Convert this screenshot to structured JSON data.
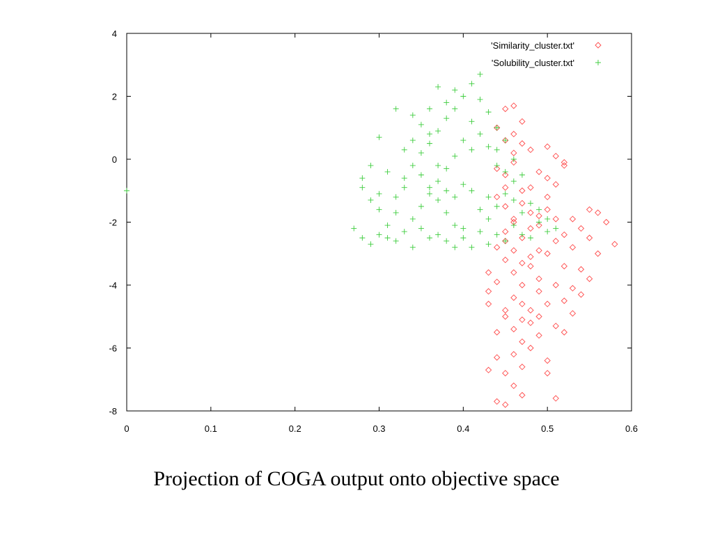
{
  "caption": "Projection of COGA output onto objective space",
  "chart_data": {
    "type": "scatter",
    "title": "",
    "xlabel": "",
    "ylabel": "",
    "xlim": [
      0,
      0.6
    ],
    "ylim": [
      -8,
      4
    ],
    "xticks": [
      0,
      0.1,
      0.2,
      0.3,
      0.4,
      0.5,
      0.6
    ],
    "xtick_labels": [
      "0",
      "0.1",
      "0.2",
      "0.3",
      "0.4",
      "0.5",
      "0.6"
    ],
    "yticks": [
      4,
      2,
      0,
      -2,
      -4,
      -6,
      -8
    ],
    "ytick_labels": [
      "4",
      "2",
      "0",
      "-2",
      "-4",
      "-6",
      "-8"
    ],
    "grid": false,
    "legend_position": "top-right",
    "series": [
      {
        "name": "'Similarity_cluster.txt'",
        "marker": "diamond",
        "color": "#ff4a4a",
        "points": [
          [
            0.44,
            -0.3
          ],
          [
            0.45,
            -0.5
          ],
          [
            0.46,
            0.2
          ],
          [
            0.47,
            -1.0
          ],
          [
            0.45,
            -1.5
          ],
          [
            0.46,
            -2.0
          ],
          [
            0.47,
            -2.5
          ],
          [
            0.48,
            -2.2
          ],
          [
            0.49,
            -1.8
          ],
          [
            0.5,
            -1.2
          ],
          [
            0.51,
            -0.8
          ],
          [
            0.52,
            -0.2
          ],
          [
            0.5,
            0.4
          ],
          [
            0.46,
            0.8
          ],
          [
            0.47,
            1.2
          ],
          [
            0.45,
            1.6
          ],
          [
            0.46,
            1.7
          ],
          [
            0.44,
            1.0
          ],
          [
            0.45,
            0.6
          ],
          [
            0.48,
            0.3
          ],
          [
            0.44,
            -2.8
          ],
          [
            0.45,
            -3.2
          ],
          [
            0.46,
            -3.6
          ],
          [
            0.47,
            -4.0
          ],
          [
            0.48,
            -3.4
          ],
          [
            0.49,
            -3.8
          ],
          [
            0.46,
            -4.4
          ],
          [
            0.47,
            -4.6
          ],
          [
            0.48,
            -4.8
          ],
          [
            0.49,
            -4.2
          ],
          [
            0.45,
            -5.0
          ],
          [
            0.46,
            -5.4
          ],
          [
            0.47,
            -5.8
          ],
          [
            0.48,
            -5.2
          ],
          [
            0.49,
            -5.6
          ],
          [
            0.46,
            -6.2
          ],
          [
            0.47,
            -6.6
          ],
          [
            0.48,
            -6.0
          ],
          [
            0.5,
            -6.4
          ],
          [
            0.45,
            -6.8
          ],
          [
            0.46,
            -7.2
          ],
          [
            0.47,
            -7.5
          ],
          [
            0.45,
            -7.8
          ],
          [
            0.44,
            -7.7
          ],
          [
            0.51,
            -7.6
          ],
          [
            0.5,
            -6.8
          ],
          [
            0.52,
            -5.5
          ],
          [
            0.53,
            -4.9
          ],
          [
            0.54,
            -4.3
          ],
          [
            0.55,
            -3.8
          ],
          [
            0.56,
            -3.0
          ],
          [
            0.54,
            -2.2
          ],
          [
            0.55,
            -1.6
          ],
          [
            0.56,
            -1.7
          ],
          [
            0.57,
            -2.0
          ],
          [
            0.58,
            -2.7
          ],
          [
            0.53,
            -2.8
          ],
          [
            0.52,
            -3.4
          ],
          [
            0.51,
            -4.0
          ],
          [
            0.5,
            -4.6
          ],
          [
            0.43,
            -4.2
          ],
          [
            0.43,
            -3.6
          ],
          [
            0.44,
            -5.5
          ],
          [
            0.44,
            -6.3
          ],
          [
            0.43,
            -6.7
          ],
          [
            0.5,
            -3.0
          ],
          [
            0.51,
            -2.6
          ],
          [
            0.52,
            -2.4
          ],
          [
            0.49,
            -2.9
          ],
          [
            0.48,
            -3.1
          ],
          [
            0.47,
            -3.3
          ],
          [
            0.46,
            -2.9
          ],
          [
            0.45,
            -2.6
          ],
          [
            0.44,
            -3.9
          ],
          [
            0.43,
            -4.6
          ],
          [
            0.45,
            -4.8
          ],
          [
            0.47,
            -5.1
          ],
          [
            0.49,
            -5.0
          ],
          [
            0.51,
            -5.3
          ],
          [
            0.52,
            -4.5
          ],
          [
            0.53,
            -4.1
          ],
          [
            0.54,
            -3.5
          ],
          [
            0.55,
            -2.5
          ],
          [
            0.53,
            -1.9
          ],
          [
            0.52,
            -0.1
          ],
          [
            0.51,
            0.1
          ],
          [
            0.5,
            -0.6
          ],
          [
            0.49,
            -0.4
          ],
          [
            0.48,
            -0.9
          ],
          [
            0.47,
            -1.4
          ],
          [
            0.46,
            -1.9
          ],
          [
            0.45,
            -2.3
          ],
          [
            0.44,
            -1.2
          ],
          [
            0.45,
            -0.9
          ],
          [
            0.46,
            -0.1
          ],
          [
            0.47,
            0.5
          ],
          [
            0.48,
            -1.7
          ],
          [
            0.49,
            -2.1
          ],
          [
            0.5,
            -1.6
          ],
          [
            0.51,
            -1.9
          ]
        ]
      },
      {
        "name": "'Solubility_cluster.txt'",
        "marker": "plus",
        "color": "#3ccc3c",
        "points": [
          [
            0.0,
            -1.0
          ],
          [
            0.27,
            -2.2
          ],
          [
            0.28,
            -2.5
          ],
          [
            0.29,
            -2.7
          ],
          [
            0.3,
            -2.4
          ],
          [
            0.31,
            -2.1
          ],
          [
            0.3,
            -1.6
          ],
          [
            0.32,
            -1.2
          ],
          [
            0.33,
            -0.6
          ],
          [
            0.34,
            -0.2
          ],
          [
            0.35,
            0.2
          ],
          [
            0.36,
            0.5
          ],
          [
            0.37,
            0.9
          ],
          [
            0.38,
            1.3
          ],
          [
            0.39,
            1.6
          ],
          [
            0.4,
            2.0
          ],
          [
            0.41,
            2.4
          ],
          [
            0.42,
            2.7
          ],
          [
            0.37,
            2.3
          ],
          [
            0.34,
            1.4
          ],
          [
            0.32,
            1.6
          ],
          [
            0.3,
            0.7
          ],
          [
            0.29,
            -0.2
          ],
          [
            0.28,
            -0.6
          ],
          [
            0.28,
            -0.9
          ],
          [
            0.33,
            0.3
          ],
          [
            0.35,
            -0.5
          ],
          [
            0.36,
            -0.9
          ],
          [
            0.37,
            -1.3
          ],
          [
            0.38,
            -1.7
          ],
          [
            0.39,
            -2.1
          ],
          [
            0.4,
            -2.5
          ],
          [
            0.41,
            -2.8
          ],
          [
            0.42,
            -2.3
          ],
          [
            0.43,
            -1.9
          ],
          [
            0.44,
            -1.5
          ],
          [
            0.45,
            -1.1
          ],
          [
            0.46,
            -0.7
          ],
          [
            0.44,
            -0.2
          ],
          [
            0.43,
            0.4
          ],
          [
            0.42,
            0.8
          ],
          [
            0.41,
            1.2
          ],
          [
            0.4,
            0.6
          ],
          [
            0.39,
            0.1
          ],
          [
            0.38,
            -0.3
          ],
          [
            0.37,
            -0.7
          ],
          [
            0.36,
            -1.1
          ],
          [
            0.35,
            -1.5
          ],
          [
            0.34,
            -1.9
          ],
          [
            0.33,
            -2.3
          ],
          [
            0.32,
            -2.6
          ],
          [
            0.34,
            -2.8
          ],
          [
            0.36,
            -2.5
          ],
          [
            0.38,
            -2.6
          ],
          [
            0.4,
            -2.2
          ],
          [
            0.42,
            -1.6
          ],
          [
            0.44,
            -2.4
          ],
          [
            0.46,
            -2.1
          ],
          [
            0.47,
            -1.7
          ],
          [
            0.48,
            -2.5
          ],
          [
            0.49,
            -2.0
          ],
          [
            0.5,
            -2.3
          ],
          [
            0.48,
            -1.4
          ],
          [
            0.47,
            -0.5
          ],
          [
            0.46,
            0.0
          ],
          [
            0.45,
            0.6
          ],
          [
            0.44,
            1.0
          ],
          [
            0.43,
            1.5
          ],
          [
            0.42,
            1.9
          ],
          [
            0.41,
            0.3
          ],
          [
            0.4,
            -0.8
          ],
          [
            0.39,
            -1.2
          ],
          [
            0.38,
            -1.0
          ],
          [
            0.37,
            -0.2
          ],
          [
            0.36,
            0.8
          ],
          [
            0.35,
            1.1
          ],
          [
            0.34,
            0.6
          ],
          [
            0.33,
            -0.9
          ],
          [
            0.32,
            -1.7
          ],
          [
            0.31,
            -0.4
          ],
          [
            0.3,
            -1.1
          ],
          [
            0.31,
            -2.5
          ],
          [
            0.29,
            -1.3
          ],
          [
            0.43,
            -2.7
          ],
          [
            0.45,
            -2.6
          ],
          [
            0.47,
            -2.4
          ],
          [
            0.49,
            -1.6
          ],
          [
            0.5,
            -1.9
          ],
          [
            0.51,
            -2.2
          ],
          [
            0.46,
            -1.3
          ],
          [
            0.45,
            -0.4
          ],
          [
            0.44,
            0.3
          ],
          [
            0.39,
            2.2
          ],
          [
            0.38,
            1.8
          ],
          [
            0.36,
            1.6
          ],
          [
            0.35,
            -2.2
          ],
          [
            0.37,
            -2.4
          ],
          [
            0.39,
            -2.8
          ],
          [
            0.41,
            -1.0
          ],
          [
            0.43,
            -1.2
          ]
        ]
      }
    ]
  }
}
